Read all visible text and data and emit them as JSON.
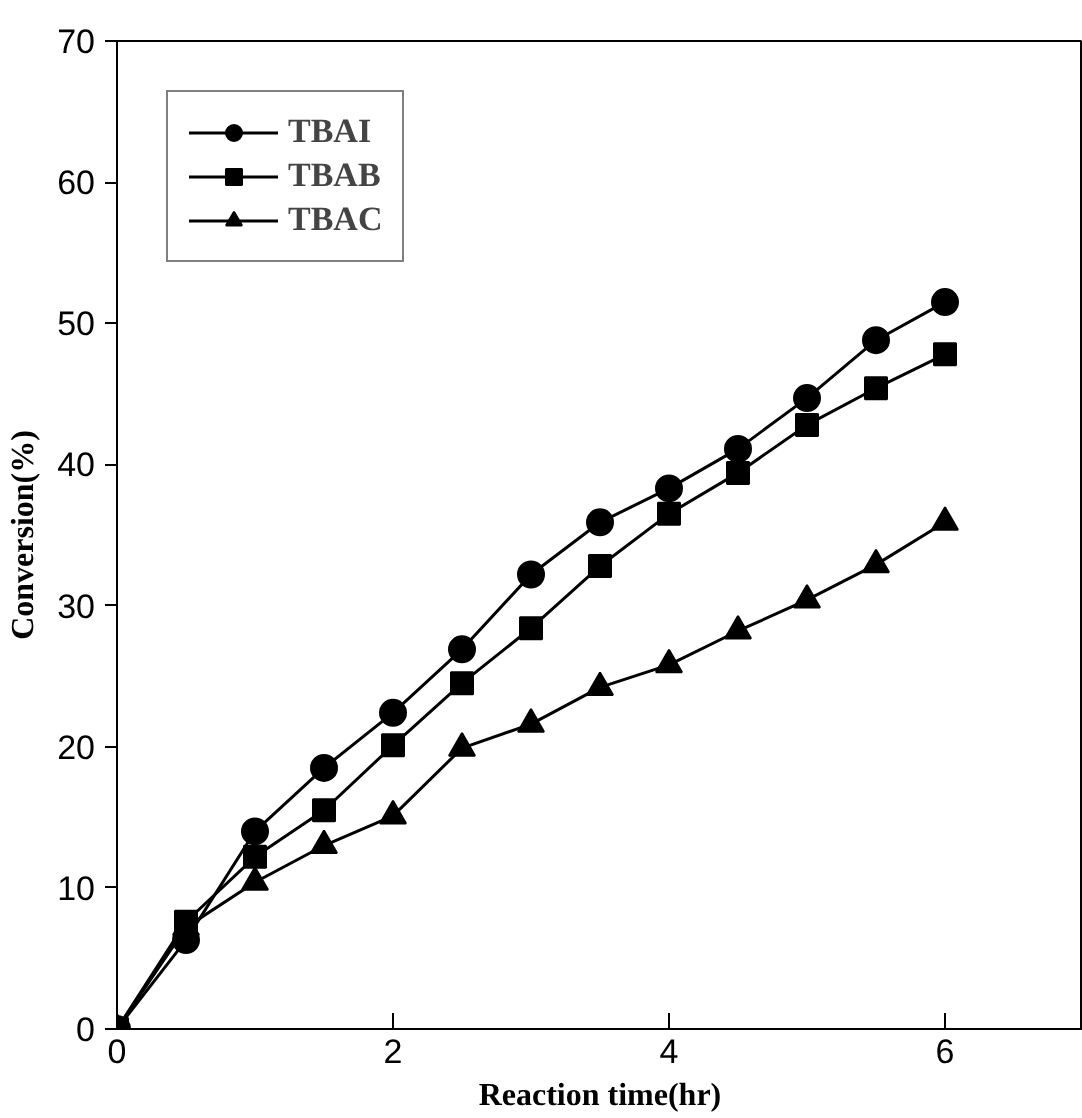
{
  "chart_data": {
    "type": "line",
    "xlabel": "Reaction time(hr)",
    "ylabel": "Conversion(%)",
    "x": [
      0,
      0.5,
      1,
      1.5,
      2,
      2.5,
      3,
      3.5,
      4,
      4.5,
      5,
      5.5,
      6
    ],
    "series": [
      {
        "name": "TBAI",
        "color": "#000000",
        "marker": "circle",
        "values": [
          0,
          6.3,
          14.0,
          18.5,
          22.4,
          26.9,
          32.2,
          35.9,
          38.3,
          41.1,
          44.7,
          48.8,
          51.5
        ]
      },
      {
        "name": "TBAB",
        "color": "#000000",
        "marker": "square",
        "values": [
          0,
          7.6,
          12.2,
          15.5,
          20.1,
          24.5,
          28.4,
          32.8,
          36.5,
          39.4,
          42.8,
          45.4,
          47.8
        ]
      },
      {
        "name": "TBAC",
        "color": "#000000",
        "marker": "triangle",
        "values": [
          0,
          7.2,
          10.4,
          13.0,
          15.1,
          19.9,
          21.6,
          24.2,
          25.8,
          28.2,
          30.4,
          32.9,
          35.9
        ]
      }
    ],
    "xlim": [
      0,
      7
    ],
    "ylim": [
      0,
      70
    ],
    "xticks": [
      0,
      2,
      4,
      6
    ],
    "yticks": [
      0,
      10,
      20,
      30,
      40,
      50,
      60,
      70
    ],
    "grid": false,
    "legend": "top left",
    "line_style": "solid"
  }
}
